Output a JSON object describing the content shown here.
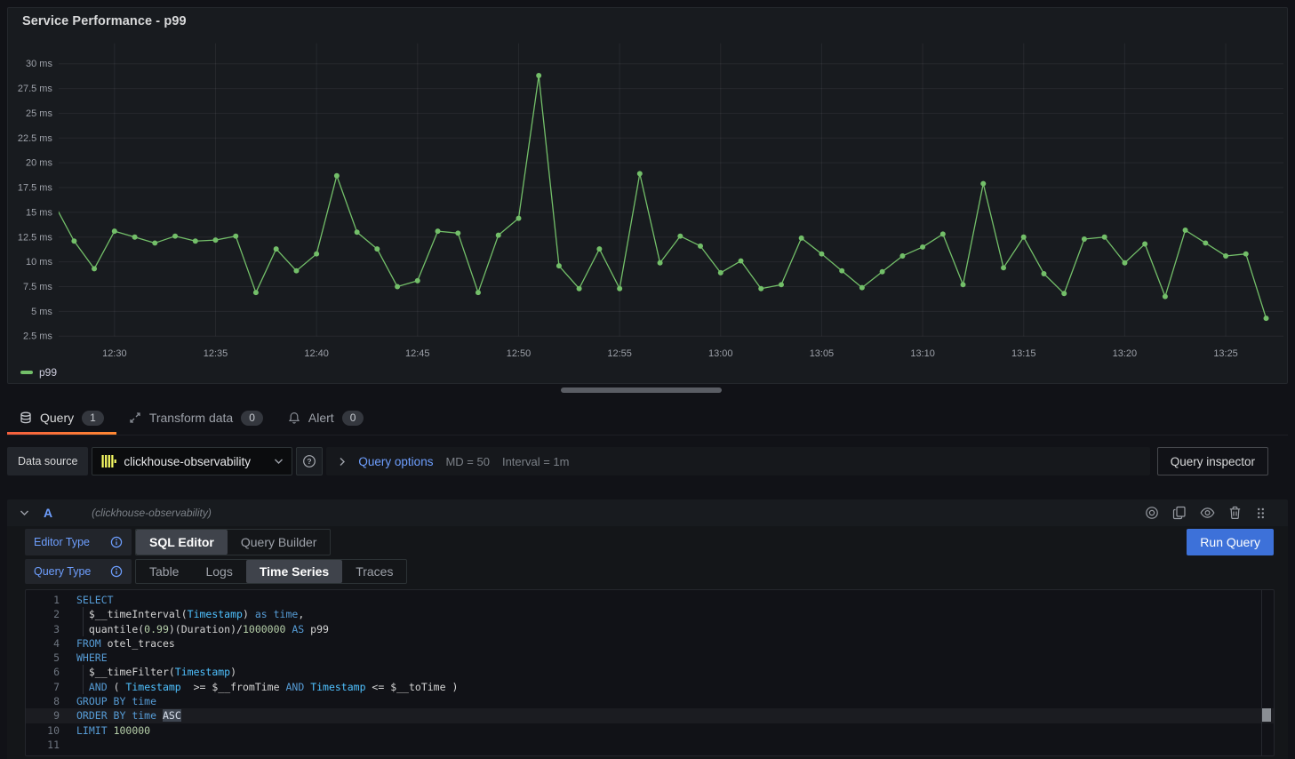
{
  "panel": {
    "title": "Service Performance - p99"
  },
  "chart_data": {
    "type": "line",
    "title": "Service Performance - p99",
    "unit": "ms",
    "legend_position": "bottom-left",
    "grid": true,
    "x_tick_labels": [
      "12:30",
      "12:35",
      "12:40",
      "12:45",
      "12:50",
      "12:55",
      "13:00",
      "13:05",
      "13:10",
      "13:15",
      "13:20",
      "13:25"
    ],
    "y_ticks": [
      2.5,
      5,
      7.5,
      10,
      12.5,
      15,
      17.5,
      20,
      22.5,
      25,
      27.5,
      30
    ],
    "y_tick_suffix": " ms",
    "ylim": [
      1.5,
      31
    ],
    "x": [
      "12:27",
      "12:28",
      "12:29",
      "12:30",
      "12:31",
      "12:32",
      "12:33",
      "12:34",
      "12:35",
      "12:36",
      "12:37",
      "12:38",
      "12:39",
      "12:40",
      "12:41",
      "12:42",
      "12:43",
      "12:44",
      "12:45",
      "12:46",
      "12:47",
      "12:48",
      "12:49",
      "12:50",
      "12:51",
      "12:52",
      "12:53",
      "12:54",
      "12:55",
      "12:56",
      "12:57",
      "12:58",
      "12:59",
      "13:00",
      "13:01",
      "13:02",
      "13:03",
      "13:04",
      "13:05",
      "13:06",
      "13:07",
      "13:08",
      "13:09",
      "13:10",
      "13:11",
      "13:12",
      "13:13",
      "13:14",
      "13:15",
      "13:16",
      "13:17",
      "13:18",
      "13:19",
      "13:20",
      "13:21",
      "13:22",
      "13:23",
      "13:24",
      "13:25",
      "13:26",
      "13:27"
    ],
    "series": [
      {
        "name": "p99",
        "color": "#73BF69",
        "values": [
          15.9,
          12.1,
          9.3,
          13.1,
          12.5,
          11.9,
          12.6,
          12.1,
          12.2,
          12.6,
          6.9,
          11.3,
          9.1,
          10.8,
          18.7,
          13.0,
          11.3,
          7.5,
          8.1,
          13.1,
          12.9,
          6.9,
          12.7,
          14.4,
          28.8,
          9.6,
          7.3,
          11.3,
          7.3,
          18.9,
          9.9,
          12.6,
          11.6,
          8.9,
          10.1,
          7.3,
          7.7,
          12.4,
          10.8,
          9.1,
          7.4,
          9.0,
          10.6,
          11.5,
          12.8,
          7.7,
          17.9,
          9.4,
          12.5,
          8.8,
          6.8,
          12.3,
          12.5,
          9.9,
          11.8,
          6.5,
          13.2,
          11.9,
          10.6,
          10.8,
          4.3
        ]
      }
    ]
  },
  "tabs": {
    "query": {
      "label": "Query",
      "count": "1"
    },
    "transform": {
      "label": "Transform data",
      "count": "0"
    },
    "alert": {
      "label": "Alert",
      "count": "0"
    }
  },
  "datasource_bar": {
    "label": "Data source",
    "selected": "clickhouse-observability",
    "query_options_label": "Query options",
    "max_data_points": "MD = 50",
    "interval": "Interval = 1m",
    "inspector_label": "Query inspector"
  },
  "query_row": {
    "ref_id": "A",
    "datasource_hint": "(clickhouse-observability)"
  },
  "editor": {
    "editor_type_label": "Editor Type",
    "editor_types": [
      "SQL Editor",
      "Query Builder"
    ],
    "active_editor_type": "SQL Editor",
    "query_type_label": "Query Type",
    "query_types": [
      "Table",
      "Logs",
      "Time Series",
      "Traces"
    ],
    "active_query_type": "Time Series",
    "run_button_label": "Run Query"
  },
  "sql": {
    "active_line": 9,
    "lines": [
      [
        {
          "t": "SELECT",
          "c": "kw"
        }
      ],
      [
        {
          "t": "  ",
          "c": "ind"
        },
        {
          "t": "$__timeInterval(",
          "c": "d"
        },
        {
          "t": "Timestamp",
          "c": "ty"
        },
        {
          "t": ") ",
          "c": "d"
        },
        {
          "t": "as",
          "c": "kw"
        },
        {
          "t": " ",
          "c": "d"
        },
        {
          "t": "time",
          "c": "kw"
        },
        {
          "t": ",",
          "c": "d"
        }
      ],
      [
        {
          "t": "  ",
          "c": "ind"
        },
        {
          "t": "quantile(",
          "c": "d"
        },
        {
          "t": "0.99",
          "c": "num"
        },
        {
          "t": ")(Duration)/",
          "c": "d"
        },
        {
          "t": "1000000",
          "c": "num"
        },
        {
          "t": " ",
          "c": "d"
        },
        {
          "t": "AS",
          "c": "kw"
        },
        {
          "t": " p99",
          "c": "d"
        }
      ],
      [
        {
          "t": "FROM",
          "c": "kw"
        },
        {
          "t": " otel_traces",
          "c": "d"
        }
      ],
      [
        {
          "t": "WHERE",
          "c": "kw"
        }
      ],
      [
        {
          "t": "  ",
          "c": "ind"
        },
        {
          "t": "$__timeFilter(",
          "c": "d"
        },
        {
          "t": "Timestamp",
          "c": "ty"
        },
        {
          "t": ")",
          "c": "d"
        }
      ],
      [
        {
          "t": "  ",
          "c": "ind"
        },
        {
          "t": "AND",
          "c": "kw"
        },
        {
          "t": " ( ",
          "c": "d"
        },
        {
          "t": "Timestamp",
          "c": "ty"
        },
        {
          "t": "  >= ",
          "c": "d"
        },
        {
          "t": "$__fromTime",
          "c": "d"
        },
        {
          "t": " ",
          "c": "d"
        },
        {
          "t": "AND",
          "c": "kw"
        },
        {
          "t": " ",
          "c": "d"
        },
        {
          "t": "Timestamp",
          "c": "ty"
        },
        {
          "t": " <= ",
          "c": "d"
        },
        {
          "t": "$__toTime",
          "c": "d"
        },
        {
          "t": " )",
          "c": "d"
        }
      ],
      [
        {
          "t": "GROUP BY",
          "c": "kw"
        },
        {
          "t": " ",
          "c": "d"
        },
        {
          "t": "time",
          "c": "kw"
        }
      ],
      [
        {
          "t": "ORDER BY",
          "c": "kw"
        },
        {
          "t": " ",
          "c": "d"
        },
        {
          "t": "time",
          "c": "kw"
        },
        {
          "t": " ",
          "c": "d"
        },
        {
          "t": "ASC",
          "c": "sel"
        }
      ],
      [
        {
          "t": "LIMIT",
          "c": "kw"
        },
        {
          "t": " ",
          "c": "d"
        },
        {
          "t": "100000",
          "c": "num"
        }
      ],
      []
    ]
  },
  "colors": {
    "accent_blue": "#6E9FFF",
    "run_button_blue": "#3D71D9",
    "series_green": "#73BF69",
    "tab_underline": "#FF780A",
    "clickhouse_yellow": "#F9FD64"
  }
}
